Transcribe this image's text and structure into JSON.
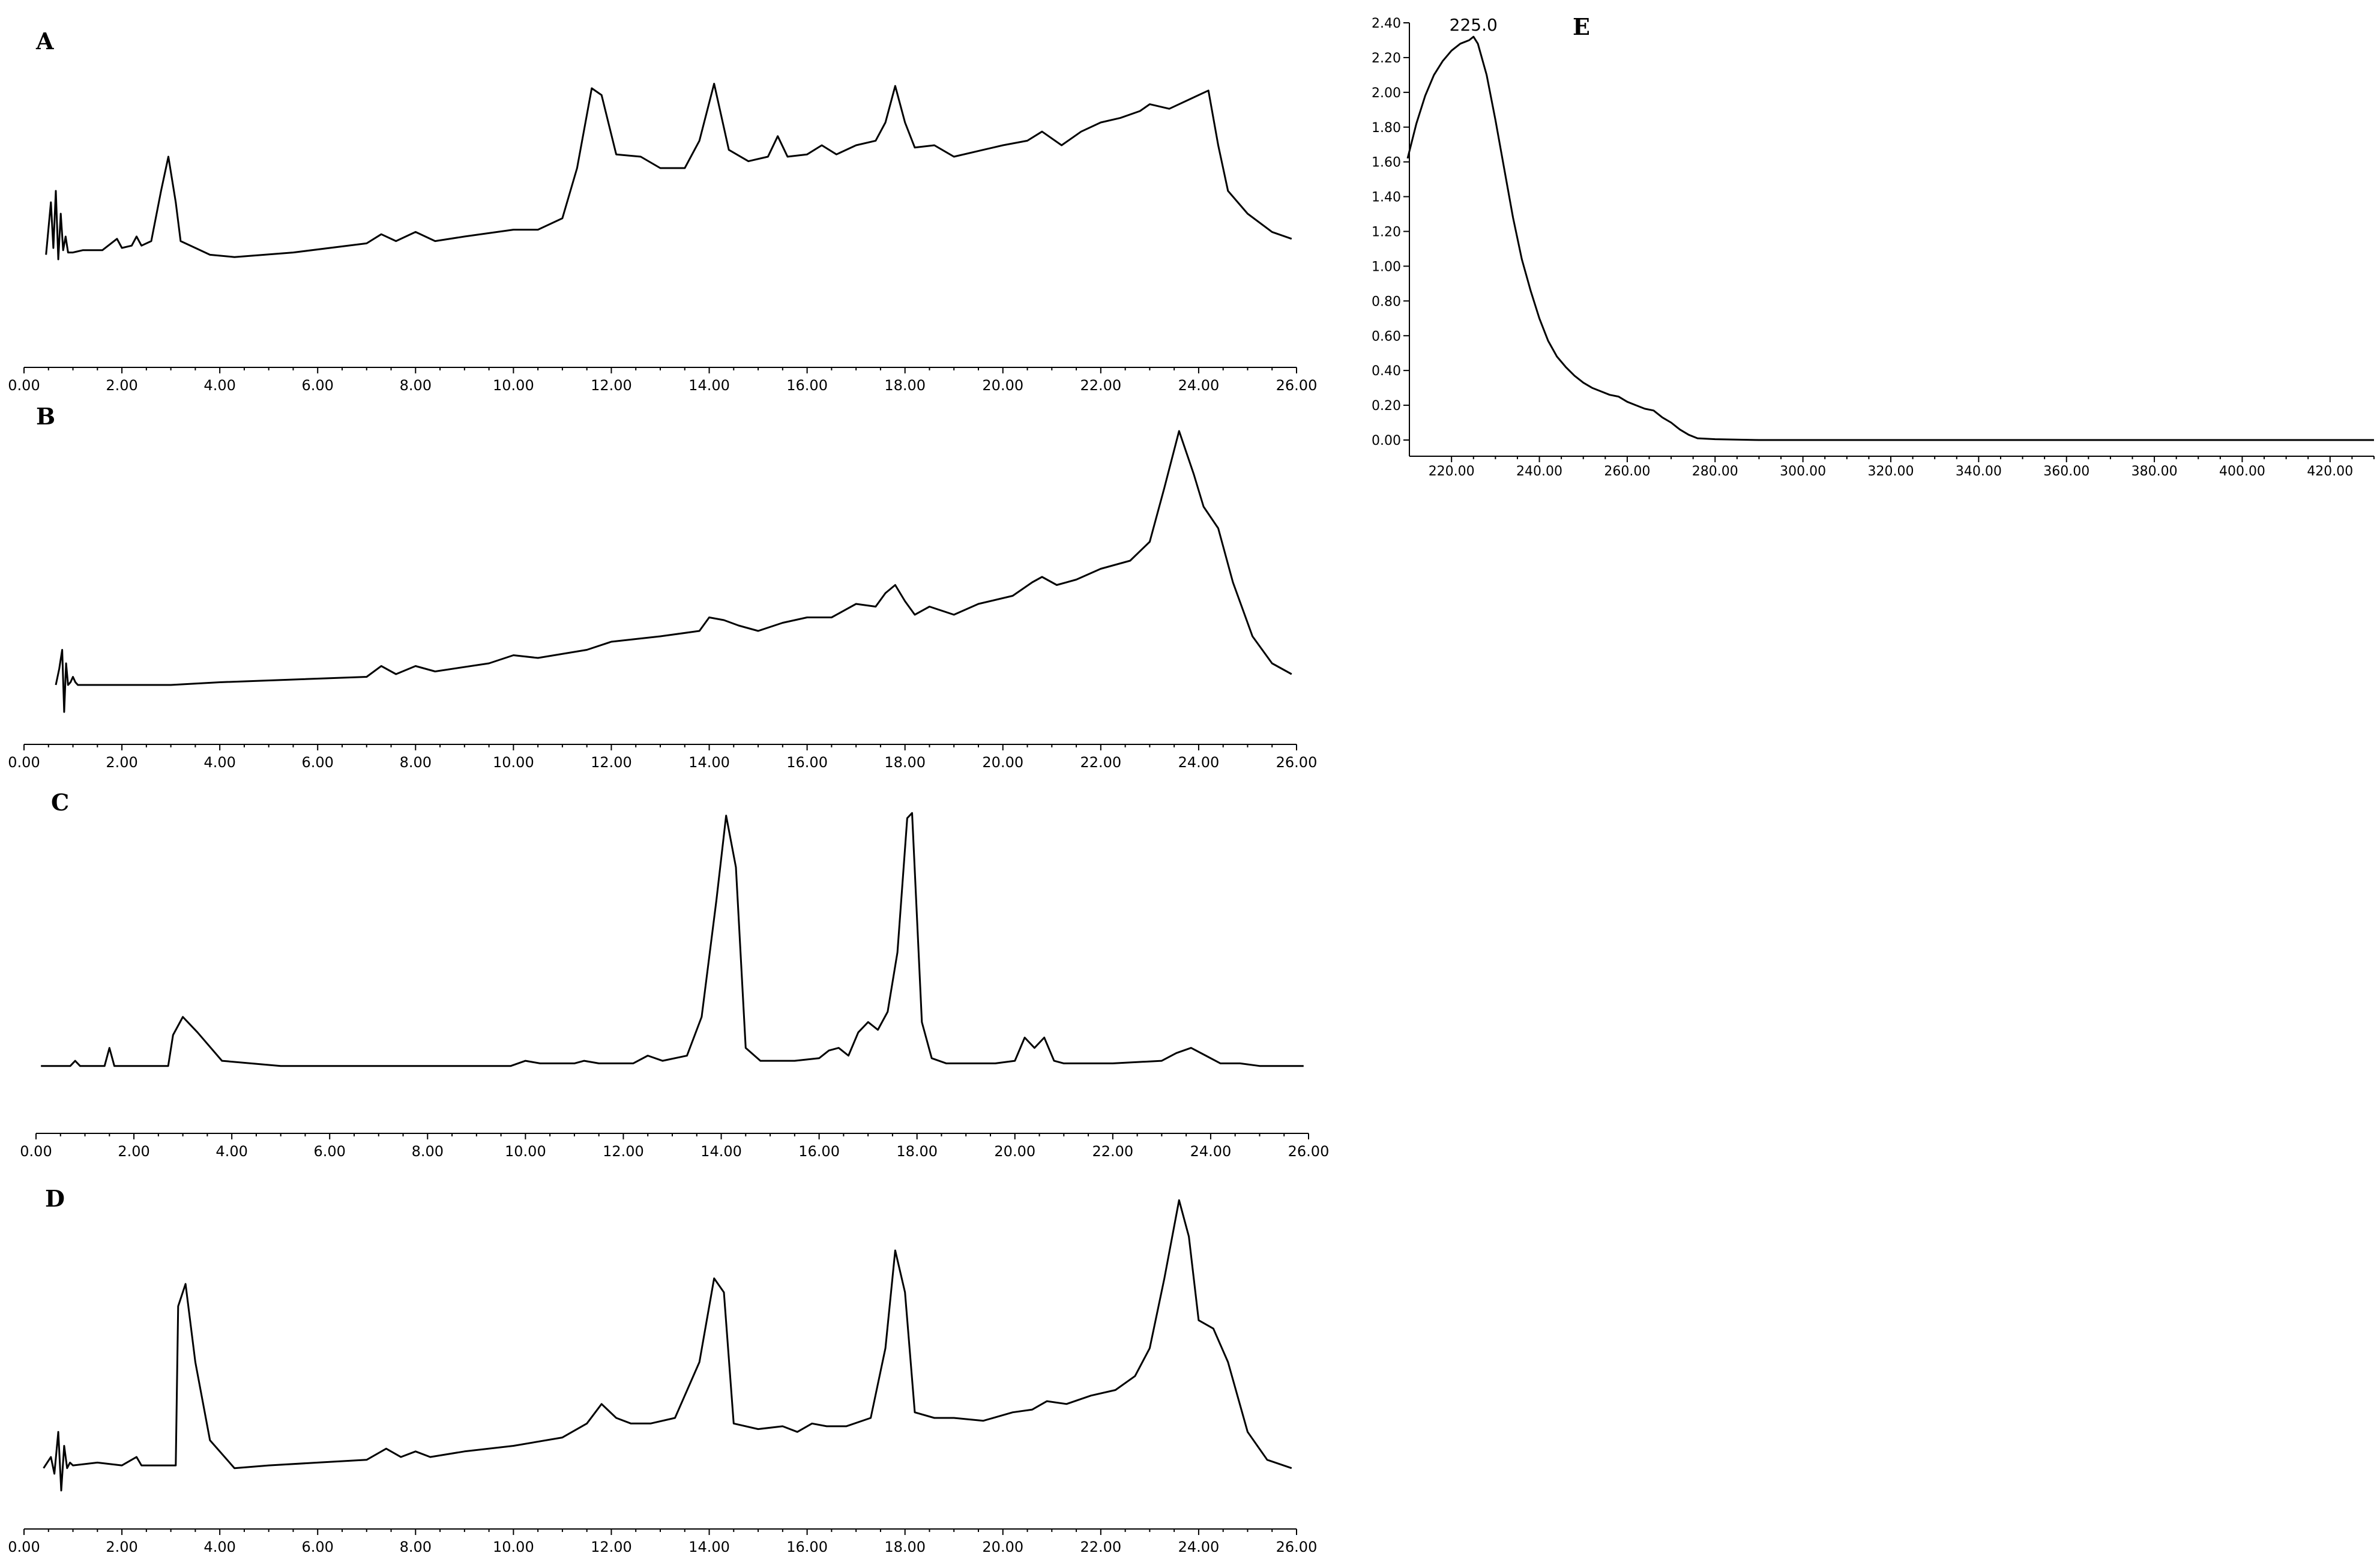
{
  "chart_data": [
    {
      "type": "line",
      "panel": "A",
      "xlim": [
        0,
        26
      ],
      "xticks": [
        "0.00",
        "2.00",
        "4.00",
        "6.00",
        "8.00",
        "10.00",
        "12.00",
        "14.00",
        "16.00",
        "18.00",
        "20.00",
        "22.00",
        "24.00",
        "26.00"
      ],
      "ylim": [
        0,
        1
      ],
      "x": [
        0.45,
        0.55,
        0.6,
        0.65,
        0.7,
        0.75,
        0.8,
        0.85,
        0.9,
        1.0,
        1.2,
        1.4,
        1.6,
        1.9,
        2.0,
        2.2,
        2.3,
        2.4,
        2.6,
        2.8,
        2.95,
        3.1,
        3.2,
        3.5,
        3.8,
        4.3,
        5.5,
        7.0,
        7.3,
        7.6,
        8.0,
        8.4,
        9.0,
        10.0,
        10.5,
        11.0,
        11.3,
        11.6,
        11.8,
        12.1,
        12.6,
        13.0,
        13.5,
        13.8,
        14.1,
        14.4,
        14.8,
        15.2,
        15.4,
        15.6,
        16.0,
        16.3,
        16.6,
        17.0,
        17.4,
        17.6,
        17.8,
        18.0,
        18.2,
        18.6,
        19.0,
        19.6,
        20.0,
        20.5,
        20.8,
        21.2,
        21.6,
        22.0,
        22.4,
        22.8,
        23.0,
        23.4,
        23.8,
        24.0,
        24.2,
        24.4,
        24.6,
        25.0,
        25.5,
        25.9
      ],
      "y": [
        0.12,
        0.35,
        0.15,
        0.4,
        0.1,
        0.3,
        0.14,
        0.2,
        0.13,
        0.13,
        0.14,
        0.14,
        0.14,
        0.19,
        0.15,
        0.16,
        0.2,
        0.16,
        0.18,
        0.4,
        0.55,
        0.35,
        0.18,
        0.15,
        0.12,
        0.11,
        0.13,
        0.17,
        0.21,
        0.18,
        0.22,
        0.18,
        0.2,
        0.23,
        0.23,
        0.28,
        0.5,
        0.85,
        0.82,
        0.56,
        0.55,
        0.5,
        0.5,
        0.62,
        0.87,
        0.58,
        0.53,
        0.55,
        0.64,
        0.55,
        0.56,
        0.6,
        0.56,
        0.6,
        0.62,
        0.7,
        0.86,
        0.7,
        0.59,
        0.6,
        0.55,
        0.58,
        0.6,
        0.62,
        0.66,
        0.6,
        0.66,
        0.7,
        0.72,
        0.75,
        0.78,
        0.76,
        0.8,
        0.82,
        0.84,
        0.6,
        0.4,
        0.3,
        0.22,
        0.19
      ]
    },
    {
      "type": "line",
      "panel": "B",
      "xlim": [
        0,
        26
      ],
      "xticks": [
        "0.00",
        "2.00",
        "4.00",
        "6.00",
        "8.00",
        "10.00",
        "12.00",
        "14.00",
        "16.00",
        "18.00",
        "20.00",
        "22.00",
        "24.00",
        "26.00"
      ],
      "ylim": [
        0,
        1
      ],
      "x": [
        0.65,
        0.72,
        0.78,
        0.82,
        0.86,
        0.9,
        0.95,
        1.0,
        1.05,
        1.1,
        1.5,
        3.0,
        4.0,
        5.5,
        7.0,
        7.3,
        7.6,
        8.0,
        8.4,
        9.5,
        10.0,
        10.5,
        11.5,
        12.0,
        13.0,
        13.8,
        14.0,
        14.3,
        14.6,
        15.0,
        15.5,
        16.0,
        16.5,
        17.0,
        17.4,
        17.6,
        17.8,
        18.0,
        18.2,
        18.5,
        19.0,
        19.5,
        20.2,
        20.6,
        20.8,
        21.1,
        21.5,
        22.0,
        22.6,
        23.0,
        23.3,
        23.6,
        23.9,
        24.1,
        24.4,
        24.7,
        25.1,
        25.5,
        25.9
      ],
      "y": [
        0.02,
        0.08,
        0.15,
        -0.08,
        0.1,
        0.02,
        0.03,
        0.05,
        0.03,
        0.02,
        0.02,
        0.02,
        0.03,
        0.04,
        0.05,
        0.09,
        0.06,
        0.09,
        0.07,
        0.1,
        0.13,
        0.12,
        0.15,
        0.18,
        0.2,
        0.22,
        0.27,
        0.26,
        0.24,
        0.22,
        0.25,
        0.27,
        0.27,
        0.32,
        0.31,
        0.36,
        0.39,
        0.33,
        0.28,
        0.31,
        0.28,
        0.32,
        0.35,
        0.4,
        0.42,
        0.39,
        0.41,
        0.45,
        0.48,
        0.55,
        0.75,
        0.96,
        0.8,
        0.68,
        0.6,
        0.4,
        0.2,
        0.1,
        0.06
      ]
    },
    {
      "type": "line",
      "panel": "C",
      "xlim": [
        0,
        26
      ],
      "xticks": [
        "0.00",
        "2.00",
        "4.00",
        "6.00",
        "8.00",
        "10.00",
        "12.00",
        "14.00",
        "16.00",
        "18.00",
        "20.00",
        "22.00",
        "24.00",
        "26.00"
      ],
      "ylim": [
        0,
        1
      ],
      "x": [
        0.1,
        0.7,
        0.8,
        0.9,
        1.4,
        1.5,
        1.6,
        2.7,
        2.8,
        3.0,
        3.3,
        3.8,
        5.0,
        8.0,
        9.7,
        10.0,
        10.3,
        11.0,
        11.2,
        11.5,
        12.2,
        12.5,
        12.8,
        13.3,
        13.6,
        13.9,
        14.1,
        14.3,
        14.5,
        14.8,
        15.5,
        16.0,
        16.2,
        16.4,
        16.6,
        16.8,
        17.0,
        17.2,
        17.4,
        17.6,
        17.8,
        17.9,
        18.1,
        18.3,
        18.6,
        19.0,
        19.6,
        20.0,
        20.2,
        20.4,
        20.6,
        20.8,
        21.0,
        22.0,
        23.0,
        23.3,
        23.6,
        23.9,
        24.2,
        24.6,
        25.0,
        25.9
      ],
      "y": [
        0.01,
        0.01,
        0.03,
        0.01,
        0.01,
        0.08,
        0.01,
        0.01,
        0.13,
        0.2,
        0.14,
        0.03,
        0.01,
        0.01,
        0.01,
        0.03,
        0.02,
        0.02,
        0.03,
        0.02,
        0.02,
        0.05,
        0.03,
        0.05,
        0.2,
        0.65,
        0.98,
        0.78,
        0.08,
        0.03,
        0.03,
        0.04,
        0.07,
        0.08,
        0.05,
        0.14,
        0.18,
        0.15,
        0.22,
        0.45,
        0.97,
        0.99,
        0.18,
        0.04,
        0.02,
        0.02,
        0.02,
        0.03,
        0.12,
        0.08,
        0.12,
        0.03,
        0.02,
        0.02,
        0.03,
        0.06,
        0.08,
        0.05,
        0.02,
        0.02,
        0.01,
        0.01
      ]
    },
    {
      "type": "line",
      "panel": "D",
      "xlim": [
        0,
        26
      ],
      "xticks": [
        "0.00",
        "2.00",
        "4.00",
        "6.00",
        "8.00",
        "10.00",
        "12.00",
        "14.00",
        "16.00",
        "18.00",
        "20.00",
        "22.00",
        "24.00",
        "26.00"
      ],
      "ylim": [
        0,
        1
      ],
      "x": [
        0.4,
        0.55,
        0.62,
        0.7,
        0.76,
        0.82,
        0.88,
        0.94,
        1.0,
        1.5,
        2.0,
        2.3,
        2.4,
        2.6,
        3.1,
        3.15,
        3.3,
        3.5,
        3.8,
        4.3,
        5.0,
        6.0,
        7.0,
        7.4,
        7.7,
        8.0,
        8.3,
        9.0,
        10.0,
        11.0,
        11.5,
        11.8,
        12.1,
        12.4,
        12.8,
        13.3,
        13.8,
        14.1,
        14.3,
        14.5,
        15.0,
        15.5,
        15.8,
        16.1,
        16.4,
        16.8,
        17.3,
        17.6,
        17.8,
        18.0,
        18.2,
        18.6,
        19.0,
        19.6,
        20.2,
        20.6,
        20.9,
        21.3,
        21.8,
        22.3,
        22.7,
        23.0,
        23.3,
        23.6,
        23.8,
        24.0,
        24.3,
        24.6,
        25.0,
        25.4,
        25.9
      ],
      "y": [
        0.02,
        0.06,
        0.0,
        0.15,
        -0.06,
        0.1,
        0.02,
        0.04,
        0.03,
        0.04,
        0.03,
        0.06,
        0.03,
        0.03,
        0.03,
        0.6,
        0.68,
        0.4,
        0.12,
        0.02,
        0.03,
        0.04,
        0.05,
        0.09,
        0.06,
        0.08,
        0.06,
        0.08,
        0.1,
        0.13,
        0.18,
        0.25,
        0.2,
        0.18,
        0.18,
        0.2,
        0.4,
        0.7,
        0.65,
        0.18,
        0.16,
        0.17,
        0.15,
        0.18,
        0.17,
        0.17,
        0.2,
        0.45,
        0.8,
        0.65,
        0.22,
        0.2,
        0.2,
        0.19,
        0.22,
        0.23,
        0.26,
        0.25,
        0.28,
        0.3,
        0.35,
        0.45,
        0.7,
        0.98,
        0.85,
        0.55,
        0.52,
        0.4,
        0.15,
        0.05,
        0.02
      ]
    },
    {
      "type": "line",
      "panel": "E",
      "xlim": [
        210,
        430
      ],
      "ylim": [
        0,
        2.4
      ],
      "xticks": [
        "220.00",
        "240.00",
        "260.00",
        "280.00",
        "300.00",
        "320.00",
        "340.00",
        "360.00",
        "380.00",
        "400.00",
        "420.00"
      ],
      "yticks": [
        "0.00",
        "0.20",
        "0.40",
        "0.60",
        "0.80",
        "1.00",
        "1.20",
        "1.40",
        "1.60",
        "1.80",
        "2.00",
        "2.20",
        "2.40"
      ],
      "peak_label": "225.0",
      "x": [
        210,
        212,
        214,
        216,
        218,
        220,
        222,
        224,
        225,
        226,
        228,
        230,
        232,
        234,
        236,
        238,
        240,
        242,
        244,
        246,
        248,
        250,
        252,
        254,
        256,
        258,
        260,
        262,
        264,
        266,
        268,
        270,
        272,
        274,
        276,
        280,
        290,
        300,
        320,
        340,
        360,
        380,
        400,
        420,
        430
      ],
      "y": [
        1.62,
        1.82,
        1.98,
        2.1,
        2.18,
        2.24,
        2.28,
        2.3,
        2.32,
        2.28,
        2.1,
        1.84,
        1.56,
        1.28,
        1.04,
        0.86,
        0.7,
        0.57,
        0.48,
        0.42,
        0.37,
        0.33,
        0.3,
        0.28,
        0.26,
        0.25,
        0.22,
        0.2,
        0.18,
        0.17,
        0.13,
        0.1,
        0.06,
        0.03,
        0.01,
        0.005,
        0.0,
        0.0,
        0.0,
        0.0,
        0.0,
        0.0,
        0.0,
        0.0,
        0.0
      ]
    }
  ]
}
